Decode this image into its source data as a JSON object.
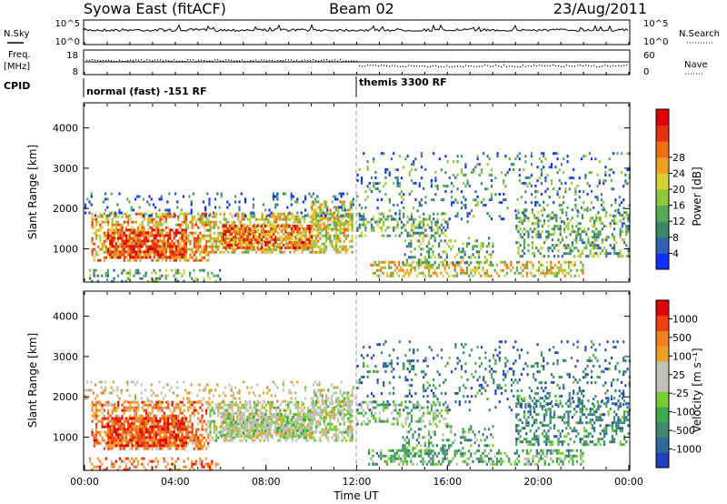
{
  "header": {
    "station": "Syowa East (fitACF)",
    "beam": "Beam 02",
    "date": "23/Aug/2011"
  },
  "top_panels": {
    "nsky_label": "N.Sky",
    "nsky_ticks": [
      "10^5",
      "10^0"
    ],
    "nsearch_label": "N.Search",
    "nsearch_ticks": [
      "10^5",
      "10^0"
    ],
    "freq_label": "Freq.",
    "freq_unit": "[MHz]",
    "freq_ticks": [
      "18",
      "8"
    ],
    "nave_label": "Nave",
    "nave_ticks": [
      "60",
      "0"
    ],
    "cpid_label": "CPID",
    "cpid_segments": [
      {
        "label": "normal (fast) -151 RF",
        "start_hour": 0,
        "end_hour": 12
      },
      {
        "label": "themis 3300 RF",
        "start_hour": 12,
        "end_hour": 24
      }
    ]
  },
  "chart_data": [
    {
      "type": "heatmap",
      "title": "",
      "xlabel": "",
      "ylabel": "Slant Range [km]",
      "xlim": [
        0,
        24
      ],
      "ylim": [
        200,
        4600
      ],
      "yticks": [
        "1000",
        "2000",
        "3000",
        "4000"
      ],
      "colorbar": {
        "label": "Power [dB]",
        "ticks": [
          "4",
          "8",
          "12",
          "16",
          "20",
          "24",
          "28"
        ],
        "colors": [
          "#1030ff",
          "#3060b0",
          "#3a8a6a",
          "#55aa55",
          "#8cc83a",
          "#d8d030",
          "#f0a020",
          "#f07010",
          "#e83010",
          "#e00000"
        ]
      }
    },
    {
      "type": "heatmap",
      "title": "",
      "xlabel": "Time UT",
      "ylabel": "Slant Range [km]",
      "xlim": [
        0,
        24
      ],
      "ylim": [
        200,
        4600
      ],
      "xticks": [
        "00:00",
        "04:00",
        "08:00",
        "12:00",
        "16:00",
        "20:00",
        "00:00"
      ],
      "yticks": [
        "1000",
        "2000",
        "3000",
        "4000"
      ],
      "colorbar": {
        "label": "Velocity [m s⁻¹]",
        "ticks": [
          "1000",
          "500",
          "100",
          "25",
          "-25",
          "-100",
          "-500",
          "-1000"
        ],
        "colors": [
          "#2040c0",
          "#306898",
          "#3d8a70",
          "#3ca84a",
          "#78cc30",
          "#c0c0b8",
          "#c0c0b8",
          "#f0a020",
          "#f08020",
          "#f04010",
          "#e00000"
        ]
      }
    }
  ]
}
